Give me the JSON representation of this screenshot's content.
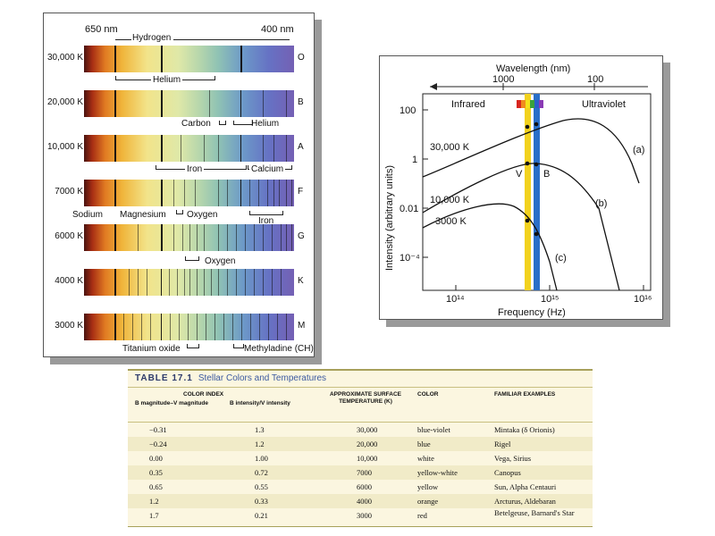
{
  "spectra": {
    "top_left_wavelength": "650 nm",
    "top_right_wavelength": "400 nm",
    "rows": [
      {
        "temp": "30,000 K",
        "class": "O"
      },
      {
        "temp": "20,000 K",
        "class": "B"
      },
      {
        "temp": "10,000 K",
        "class": "A"
      },
      {
        "temp": "7000 K",
        "class": "F"
      },
      {
        "temp": "6000 K",
        "class": "G"
      },
      {
        "temp": "4000 K",
        "class": "K"
      },
      {
        "temp": "3000 K",
        "class": "M"
      }
    ],
    "labels": {
      "hydrogen": "Hydrogen",
      "helium_1": "Helium",
      "carbon": "Carbon",
      "helium_2": "Helium",
      "iron_1": "Iron",
      "calcium": "Calcium",
      "sodium": "Sodium",
      "magnesium": "Magnesium",
      "oxygen_1": "Oxygen",
      "iron_2": "Iron",
      "oxygen_2": "Oxygen",
      "titanium_oxide": "Titanium oxide",
      "methyladine": "Methyladine (CH)"
    }
  },
  "chart_data": {
    "type": "line",
    "title": "",
    "top_axis_label": "Wavelength (nm)",
    "top_ticks": [
      "1000",
      "100"
    ],
    "xlabel": "Frequency (Hz)",
    "ylabel": "Intensity (arbitrary units)",
    "xscale": "log",
    "yscale": "log",
    "x_ticks": [
      "10¹⁴",
      "10¹⁵",
      "10¹⁶"
    ],
    "y_ticks": [
      "100",
      "1",
      "0.01",
      "10⁻⁴"
    ],
    "region_labels": {
      "left": "Infrared",
      "right": "Ultraviolet"
    },
    "band_labels": {
      "v": "V",
      "b": "B"
    },
    "series": [
      {
        "name": "30,000 K",
        "tag": "(a)"
      },
      {
        "name": "10,000 K",
        "tag": "(b)"
      },
      {
        "name": "3000 K",
        "tag": "(c)"
      }
    ],
    "colors": {
      "v_band": "#f2d21e",
      "b_band": "#2a6fc8",
      "curve": "#111111"
    }
  },
  "table": {
    "number": "TABLE 17.1",
    "caption": "Stellar Colors and Temperatures",
    "group_header": "COLOR INDEX",
    "headers": [
      "B magnitude–V magnitude",
      "B intensity/V intensity",
      "APPROXIMATE SURFACE TEMPERATURE (K)",
      "COLOR",
      "FAMILIAR EXAMPLES"
    ],
    "rows": [
      [
        "−0.31",
        "1.3",
        "30,000",
        "blue-violet",
        "Mintaka (δ Orionis)"
      ],
      [
        "−0.24",
        "1.2",
        "20,000",
        "blue",
        "Rigel"
      ],
      [
        "0.00",
        "1.00",
        "10,000",
        "white",
        "Vega, Sirius"
      ],
      [
        "0.35",
        "0.72",
        "7000",
        "yellow-white",
        "Canopus"
      ],
      [
        "0.65",
        "0.55",
        "6000",
        "yellow",
        "Sun, Alpha Centauri"
      ],
      [
        "1.2",
        "0.33",
        "4000",
        "orange",
        "Arcturus, Aldebaran"
      ],
      [
        "1.7",
        "0.21",
        "3000",
        "red",
        "Betelgeuse, Barnard's Star"
      ]
    ]
  }
}
